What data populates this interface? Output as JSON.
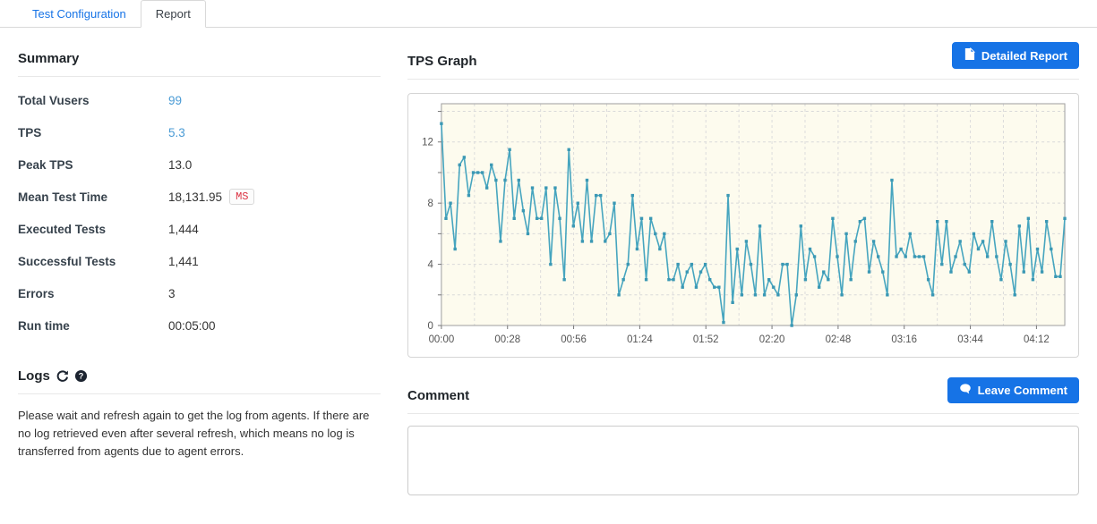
{
  "tabs": {
    "items": [
      {
        "label": "Test Configuration",
        "active": false
      },
      {
        "label": "Report",
        "active": true
      }
    ]
  },
  "summary": {
    "title": "Summary",
    "rows": [
      {
        "label": "Total Vusers",
        "value": "99",
        "link": true
      },
      {
        "label": "TPS",
        "value": "5.3",
        "link": true
      },
      {
        "label": "Peak TPS",
        "value": "13.0",
        "link": false
      },
      {
        "label": "Mean Test Time",
        "value": "18,131.95",
        "link": false,
        "badge": "MS"
      },
      {
        "label": "Executed Tests",
        "value": "1,444",
        "link": false
      },
      {
        "label": "Successful Tests",
        "value": "1,441",
        "link": false
      },
      {
        "label": "Errors",
        "value": "3",
        "link": false
      },
      {
        "label": "Run time",
        "value": "00:05:00",
        "link": false
      }
    ]
  },
  "logs": {
    "title": "Logs",
    "icons": [
      "refresh-icon",
      "help-circle-icon"
    ],
    "message": "Please wait and refresh again to get the log from agents. If there are no log retrieved even after several refresh, which means no log is transferred from agents due to agent errors."
  },
  "tps_graph": {
    "title": "TPS Graph",
    "detailed_report_label": "Detailed Report",
    "detailed_report_icon": "file-icon"
  },
  "comment": {
    "title": "Comment",
    "leave_comment_label": "Leave Comment",
    "leave_comment_icon": "speech-bubble-icon",
    "textarea_value": ""
  },
  "colors": {
    "accent_blue": "#1673e6",
    "link_blue": "#4a9bd5",
    "badge_red": "#dc3545"
  },
  "chart_data": {
    "type": "line",
    "title": "TPS Graph",
    "xlabel": "",
    "ylabel": "",
    "ylim": [
      0,
      14.5
    ],
    "y_grid_step": 2,
    "y_label_ticks": [
      0,
      4,
      8,
      12
    ],
    "x_tick_labels": [
      "00:00",
      "00:28",
      "00:56",
      "01:24",
      "01:52",
      "02:20",
      "02:48",
      "03:16",
      "03:44",
      "04:12"
    ],
    "x_tick_step_seconds": 28,
    "x_seconds_max": 264,
    "grid": true,
    "legend": false,
    "plot_bg": "#fdfbee",
    "series": [
      {
        "name": "TPS",
        "color": "#46a5bf",
        "marker_color": "#3b98b4",
        "values": [
          13.2,
          7,
          8,
          5,
          10.5,
          11,
          8.5,
          10,
          10,
          10,
          9,
          10.5,
          9.5,
          5.5,
          9.5,
          11.5,
          7,
          9.5,
          7.5,
          6,
          9,
          7,
          7,
          9,
          4,
          9,
          7,
          3,
          11.5,
          6.5,
          8,
          5.5,
          9.5,
          5.5,
          8.5,
          8.5,
          5.5,
          6,
          8,
          2,
          3,
          4,
          8.5,
          5,
          7,
          3,
          7,
          6,
          5,
          6,
          3,
          3,
          4,
          2.5,
          3.5,
          4,
          2.5,
          3.5,
          4,
          3,
          2.5,
          2.5,
          0.2,
          8.5,
          1.5,
          5,
          2,
          5.5,
          4,
          2,
          6.5,
          2,
          3,
          2.5,
          2,
          4,
          4,
          0,
          2,
          6.5,
          3,
          5,
          4.5,
          2.5,
          3.5,
          3,
          7,
          4.5,
          2,
          6,
          3,
          5.5,
          6.8,
          7,
          3.5,
          5.5,
          4.5,
          3.5,
          2,
          9.5,
          4.5,
          5,
          4.5,
          6,
          4.5,
          4.5,
          4.5,
          3,
          2,
          6.8,
          4,
          6.8,
          3.5,
          4.5,
          5.5,
          4,
          3.5,
          6,
          5,
          5.5,
          4.5,
          6.8,
          4.5,
          3,
          5.5,
          4,
          2,
          6.5,
          3.5,
          7,
          3,
          5,
          3.5,
          6.8,
          5,
          3.2,
          3.2,
          7
        ]
      }
    ]
  }
}
